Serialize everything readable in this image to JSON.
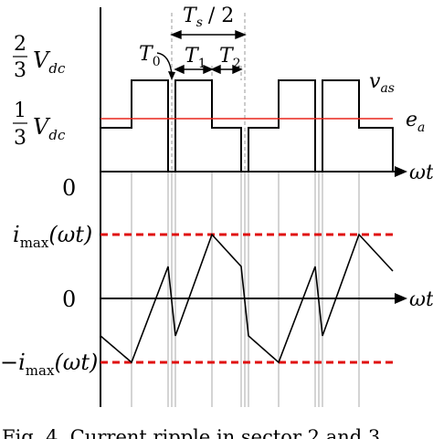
{
  "labels": {
    "two_thirds_num": "2",
    "two_thirds_den": "3",
    "one_third_num": "1",
    "one_third_den": "3",
    "vdc_base": "V",
    "vdc_sub": "dc",
    "zero_top": "0",
    "i_max_base": "i",
    "i_max_sub": "max",
    "i_max_arg": "(ωt)",
    "zero_mid": "0",
    "neg_i_max_base": "−i",
    "neg_i_max_sub": "max",
    "neg_i_max_arg": "(ωt)",
    "ts_half": "T",
    "ts_half_sub": "s",
    "ts_half_div": "/ 2",
    "t0_base": "T",
    "t0_sub": "0",
    "t1_base": "T",
    "t1_sub": "1",
    "t2_base": "T",
    "t2_sub": "2",
    "vas_base": "v",
    "vas_sub": "as",
    "ea_base": "e",
    "ea_sub": "a",
    "omega_t_top": "ωt",
    "omega_t_mid": "ωt",
    "caption": "Fig. 4.  Current ripple in sector 2 and 3."
  },
  "colors": {
    "ink": "#000000",
    "back_emf": "#e8261b",
    "grid": "#b8b8b8",
    "dashed_limit": "#e01010"
  }
}
